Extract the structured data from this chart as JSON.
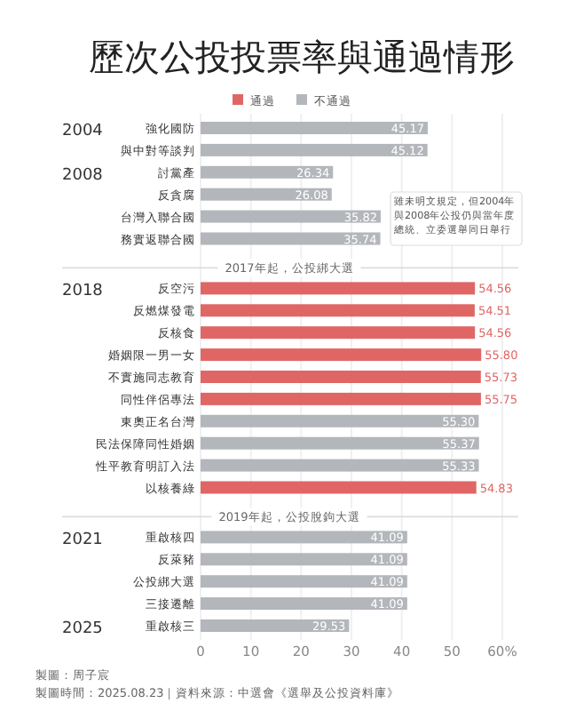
{
  "chart_data": {
    "type": "bar",
    "orientation": "horizontal",
    "title": "歷次公投投票率與通過情形",
    "categories": [
      "強化國防",
      "與中對等談判",
      "討黨產",
      "反貪腐",
      "台灣入聯合國",
      "務實返聯合國",
      "反空污",
      "反燃煤發電",
      "反核食",
      "婚姻限一男一女",
      "不實施同志教育",
      "同性伴侶專法",
      "東奧正名台灣",
      "民法保障同性婚姻",
      "性平教育明訂入法",
      "以核養綠",
      "重啟核四",
      "反萊豬",
      "公投綁大選",
      "三接遷離",
      "重啟核三"
    ],
    "series": [
      {
        "name": "通過",
        "color": "#e06666",
        "values": [
          null,
          null,
          null,
          null,
          null,
          null,
          54.56,
          54.51,
          54.56,
          55.8,
          55.73,
          55.75,
          null,
          null,
          null,
          54.83,
          null,
          null,
          null,
          null,
          null
        ],
        "value_labels": [
          null,
          null,
          null,
          null,
          null,
          null,
          "54.56",
          "54.51",
          "54.56",
          "55.80",
          "55.73",
          "55.75",
          null,
          null,
          null,
          "54.83",
          null,
          null,
          null,
          null,
          null
        ]
      },
      {
        "name": "不通過",
        "color": "#b3b6bb",
        "values": [
          45.17,
          45.12,
          26.34,
          26.08,
          35.82,
          35.74,
          null,
          null,
          null,
          null,
          null,
          null,
          55.3,
          55.37,
          55.33,
          null,
          41.09,
          41.09,
          41.09,
          41.09,
          29.53
        ],
        "value_labels": [
          "45.17",
          "45.12",
          "26.34",
          "26.08",
          "35.82",
          "35.74",
          null,
          null,
          null,
          null,
          null,
          null,
          "55.30",
          "55.37",
          "55.33",
          null,
          "41.09",
          "41.09",
          "41.09",
          "41.09",
          "29.53"
        ]
      }
    ],
    "xlim": [
      0,
      60
    ],
    "xticks": [
      0,
      10,
      20,
      30,
      40,
      50,
      {
        "value": 60,
        "label": "60%"
      }
    ],
    "grid": "x",
    "legend": "top",
    "annotations": [
      "2004",
      "2008",
      "2017年起，公投綁大選",
      "2018",
      "2019年起，公投脫鉤大選",
      "2021",
      "2025",
      "雖未明文規定，但2004年與2008年公投仍與當年度總統、立委選舉同日舉行",
      "製圖：周子宸",
      "製圖時間：2025.08.23｜資料來源：中選會《選舉及公投資料庫》"
    ]
  }
}
